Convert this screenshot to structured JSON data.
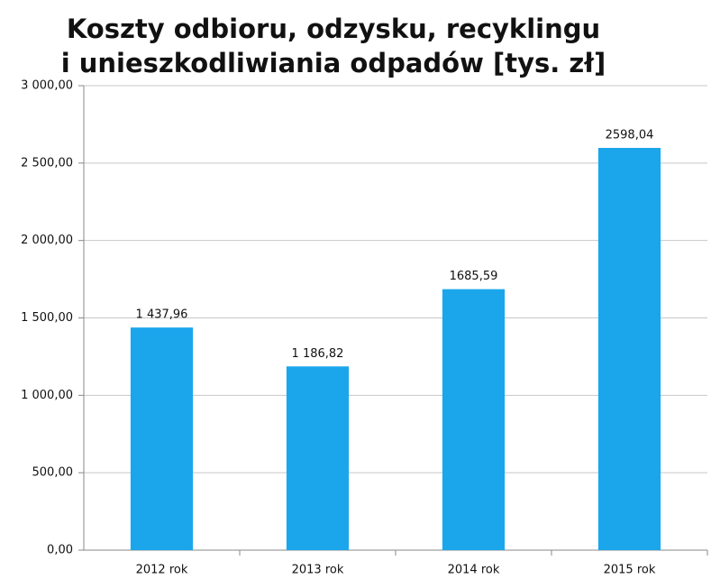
{
  "chart_data": {
    "type": "bar",
    "title": [
      "Koszty odbioru, odzysku, recyklingu",
      "i unieszkodliwiania odpadów [tys. zł]"
    ],
    "categories": [
      "2012 rok",
      "2013 rok",
      "2014 rok",
      "2015 rok"
    ],
    "values": [
      1437.96,
      1186.82,
      1685.59,
      2598.04
    ],
    "value_labels": [
      "1 437,96",
      "1 186,82",
      "1685,59",
      "2598,04"
    ],
    "color": "#1ba6ec",
    "ylim": [
      0,
      3000
    ],
    "yticks": [
      {
        "value": 0,
        "label": "0,00"
      },
      {
        "value": 500,
        "label": "500,00"
      },
      {
        "value": 1000,
        "label": "1 000,00"
      },
      {
        "value": 1500,
        "label": "1 500,00"
      },
      {
        "value": 2000,
        "label": "2 000,00"
      },
      {
        "value": 2500,
        "label": "2 500,00"
      },
      {
        "value": 3000,
        "label": "3 000,00"
      }
    ],
    "grid": true
  }
}
